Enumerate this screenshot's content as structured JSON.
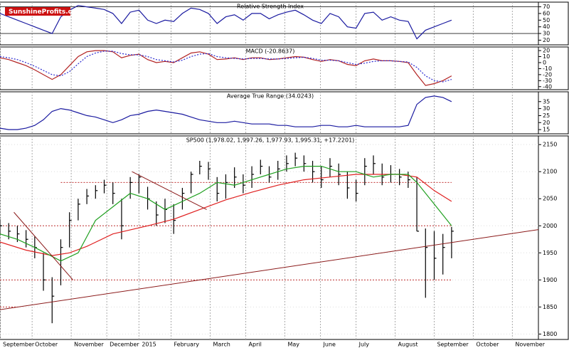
{
  "logo": "SunshineProfits.com",
  "chart_data": [
    {
      "type": "line",
      "title": "Relative Strength Index",
      "ylim": [
        13,
        77
      ],
      "yticks": [
        70,
        60,
        50,
        40,
        30,
        20
      ],
      "ref_lines": [
        70,
        30
      ],
      "x": [
        0,
        1,
        2,
        3,
        4,
        5,
        6,
        7,
        8,
        9,
        10,
        11,
        12,
        13,
        14,
        15,
        16,
        17,
        18,
        19,
        20,
        21,
        22,
        23,
        24,
        25,
        26,
        27,
        28,
        29,
        30,
        31,
        32,
        33,
        34,
        35,
        36,
        37,
        38,
        39,
        40,
        41,
        42,
        43,
        44,
        45,
        46,
        47,
        48,
        49,
        50,
        51,
        52
      ],
      "series": [
        {
          "color": "#1a1aa0",
          "values": [
            60,
            55,
            50,
            45,
            40,
            35,
            30,
            55,
            65,
            72,
            70,
            68,
            66,
            60,
            45,
            62,
            65,
            50,
            45,
            50,
            48,
            60,
            68,
            66,
            60,
            45,
            55,
            58,
            50,
            60,
            60,
            52,
            58,
            62,
            65,
            58,
            50,
            45,
            60,
            55,
            40,
            38,
            60,
            62,
            50,
            55,
            50,
            48,
            22,
            35,
            40,
            45,
            50
          ]
        }
      ]
    },
    {
      "type": "line",
      "title": "MACD (-20.8637)",
      "ylim": [
        -45,
        26
      ],
      "yticks": [
        20,
        10,
        0,
        -10,
        -20,
        -30,
        -40
      ],
      "x": [
        0,
        1,
        2,
        3,
        4,
        5,
        6,
        7,
        8,
        9,
        10,
        11,
        12,
        13,
        14,
        15,
        16,
        17,
        18,
        19,
        20,
        21,
        22,
        23,
        24,
        25,
        26,
        27,
        28,
        29,
        30,
        31,
        32,
        33,
        34,
        35,
        36,
        37,
        38,
        39,
        40,
        41,
        42,
        43,
        44,
        45,
        46,
        47,
        48,
        49,
        50,
        51,
        52
      ],
      "series": [
        {
          "color": "#b22222",
          "values": [
            8,
            5,
            0,
            -5,
            -12,
            -20,
            -28,
            -20,
            -5,
            10,
            18,
            20,
            20,
            18,
            8,
            12,
            14,
            5,
            0,
            2,
            0,
            8,
            16,
            18,
            14,
            5,
            6,
            8,
            5,
            8,
            8,
            5,
            6,
            8,
            10,
            9,
            5,
            2,
            5,
            3,
            -3,
            -5,
            3,
            6,
            3,
            3,
            2,
            0,
            -20,
            -38,
            -35,
            -30,
            -22
          ]
        },
        {
          "color": "#2a2ad0",
          "dashed": true,
          "values": [
            10,
            8,
            5,
            0,
            -6,
            -13,
            -20,
            -22,
            -15,
            -2,
            10,
            16,
            19,
            19,
            15,
            13,
            13,
            10,
            5,
            3,
            1,
            4,
            10,
            14,
            15,
            10,
            8,
            7,
            6,
            7,
            7,
            6,
            6,
            7,
            8,
            9,
            7,
            4,
            4,
            3,
            0,
            -3,
            -1,
            2,
            3,
            3,
            2,
            1,
            -8,
            -22,
            -30,
            -32,
            -28
          ]
        }
      ]
    },
    {
      "type": "line",
      "title": "Average True Range (34.0243)",
      "ylim": [
        12,
        42
      ],
      "yticks": [
        35,
        30,
        25,
        20,
        15
      ],
      "x": [
        0,
        1,
        2,
        3,
        4,
        5,
        6,
        7,
        8,
        9,
        10,
        11,
        12,
        13,
        14,
        15,
        16,
        17,
        18,
        19,
        20,
        21,
        22,
        23,
        24,
        25,
        26,
        27,
        28,
        29,
        30,
        31,
        32,
        33,
        34,
        35,
        36,
        37,
        38,
        39,
        40,
        41,
        42,
        43,
        44,
        45,
        46,
        47,
        48,
        49,
        50,
        51,
        52
      ],
      "series": [
        {
          "color": "#1a1aa0",
          "values": [
            16,
            15,
            15,
            16,
            18,
            22,
            28,
            30,
            29,
            27,
            25,
            24,
            22,
            20,
            22,
            25,
            26,
            28,
            29,
            28,
            27,
            26,
            24,
            22,
            21,
            20,
            20,
            21,
            20,
            19,
            19,
            19,
            18,
            18,
            17,
            17,
            17,
            18,
            18,
            17,
            17,
            18,
            17,
            17,
            17,
            17,
            17,
            18,
            33,
            38,
            39,
            38,
            35
          ]
        }
      ]
    },
    {
      "type": "hlc",
      "title": "SP500 (1,978.02, 1,997.26, 1,977.93, 1,995.31, +17.2201)",
      "ylim": [
        1790,
        2166
      ],
      "yticks": [
        2150,
        2100,
        2050,
        2000,
        1950,
        1900,
        1850,
        1800
      ],
      "xlim": [
        0,
        62
      ],
      "xticks": [
        {
          "value": 0,
          "label": "September"
        },
        {
          "value": 3.7,
          "label": "October"
        },
        {
          "value": 8.2,
          "label": "November"
        },
        {
          "value": 12.3,
          "label": "December"
        },
        {
          "value": 16.0,
          "label": "2015"
        },
        {
          "value": 19.7,
          "label": "February"
        },
        {
          "value": 24.2,
          "label": "March"
        },
        {
          "value": 28.3,
          "label": "April"
        },
        {
          "value": 32.8,
          "label": "May"
        },
        {
          "value": 36.9,
          "label": "June"
        },
        {
          "value": 41.0,
          "label": "July"
        },
        {
          "value": 45.5,
          "label": "August"
        },
        {
          "value": 50.0,
          "label": "September"
        },
        {
          "value": 54.5,
          "label": "October"
        },
        {
          "value": 59.0,
          "label": "November"
        }
      ],
      "x": [
        0,
        1,
        2,
        3,
        4,
        5,
        6,
        7,
        8,
        9,
        10,
        11,
        12,
        13,
        14,
        15,
        16,
        17,
        18,
        19,
        20,
        21,
        22,
        23,
        24,
        25,
        26,
        27,
        28,
        29,
        30,
        31,
        32,
        33,
        34,
        35,
        36,
        37,
        38,
        39,
        40,
        41,
        42,
        43,
        44,
        45,
        46,
        47,
        48,
        49,
        50,
        51,
        52
      ],
      "high": [
        2012,
        2005,
        2000,
        1992,
        1980,
        1950,
        1905,
        1975,
        2025,
        2050,
        2068,
        2075,
        2085,
        2080,
        2050,
        2090,
        2095,
        2072,
        2045,
        2050,
        2040,
        2070,
        2100,
        2120,
        2118,
        2090,
        2095,
        2108,
        2095,
        2110,
        2122,
        2110,
        2120,
        2130,
        2135,
        2130,
        2120,
        2110,
        2125,
        2115,
        2100,
        2085,
        2125,
        2130,
        2115,
        2112,
        2105,
        2100,
        2090,
        1995,
        1990,
        1985,
        1998
      ],
      "low": [
        1985,
        1975,
        1970,
        1960,
        1940,
        1880,
        1820,
        1890,
        1960,
        2010,
        2040,
        2050,
        2060,
        2040,
        1975,
        2050,
        2060,
        2030,
        2000,
        2005,
        1985,
        2030,
        2060,
        2095,
        2085,
        2045,
        2050,
        2070,
        2060,
        2070,
        2095,
        2080,
        2085,
        2100,
        2110,
        2100,
        2080,
        2070,
        2090,
        2075,
        2050,
        2045,
        2075,
        2095,
        2075,
        2080,
        2075,
        2070,
        1990,
        1867,
        1900,
        1910,
        1940
      ],
      "close": [
        2000,
        1990,
        1985,
        1975,
        1960,
        1900,
        1870,
        1960,
        2010,
        2040,
        2055,
        2065,
        2075,
        2060,
        2000,
        2080,
        2090,
        2050,
        2020,
        2030,
        2010,
        2060,
        2095,
        2110,
        2105,
        2060,
        2080,
        2090,
        2075,
        2095,
        2110,
        2090,
        2105,
        2115,
        2125,
        2115,
        2100,
        2085,
        2110,
        2095,
        2070,
        2060,
        2110,
        2115,
        2090,
        2095,
        2090,
        2085,
        1990,
        1960,
        1940,
        1960,
        1990
      ],
      "bar_color": "#000000",
      "series": [
        {
          "color": "#e02020",
          "x": [
            0,
            3,
            6,
            8,
            10,
            13,
            17,
            20,
            23,
            26,
            29,
            32,
            35,
            38,
            41,
            44,
            46,
            48,
            50,
            52
          ],
          "values": [
            1970,
            1955,
            1945,
            1950,
            1962,
            1985,
            2000,
            2012,
            2030,
            2048,
            2062,
            2075,
            2085,
            2090,
            2095,
            2095,
            2095,
            2090,
            2065,
            2045
          ]
        },
        {
          "color": "#20a020",
          "x": [
            0,
            2,
            4,
            7,
            9,
            11,
            13,
            15,
            17,
            19,
            21,
            23,
            25,
            27,
            29,
            31,
            33,
            35,
            37,
            39,
            41,
            43,
            45,
            47,
            48,
            50,
            52
          ],
          "values": [
            1985,
            1975,
            1960,
            1935,
            1950,
            2010,
            2035,
            2060,
            2050,
            2030,
            2045,
            2060,
            2080,
            2075,
            2085,
            2095,
            2105,
            2110,
            2110,
            2100,
            2100,
            2090,
            2095,
            2095,
            2080,
            2040,
            2000
          ]
        }
      ],
      "lines": [
        {
          "color": "#8b1a1a",
          "x": [
            0,
            62
          ],
          "y": [
            1845,
            1993
          ]
        },
        {
          "color": "#8b1a1a",
          "x": [
            1.6,
            8.4
          ],
          "y": [
            2025,
            1900
          ]
        },
        {
          "color": "#8b1a1a",
          "x": [
            15.2,
            23.8
          ],
          "y": [
            2100,
            2030
          ]
        }
      ],
      "levels": [
        {
          "color": "#c03030",
          "y": 2080,
          "x": [
            7,
            52
          ]
        },
        {
          "color": "#c03030",
          "y": 2000,
          "x": [
            0,
            52
          ]
        },
        {
          "color": "#c03030",
          "y": 1900,
          "x": [
            0,
            52
          ]
        },
        {
          "color": "#c03030",
          "y": 1850,
          "x": [
            0,
            2
          ]
        }
      ]
    }
  ]
}
